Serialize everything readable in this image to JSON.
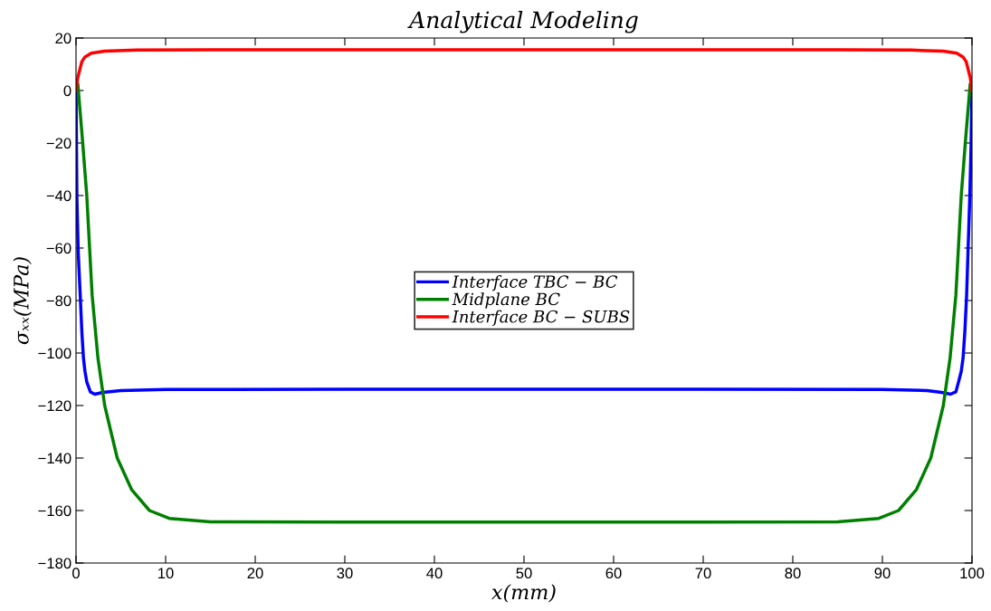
{
  "chart_data": {
    "type": "line",
    "title": "Analytical Modeling",
    "xlabel": "x(mm)",
    "ylabel": "σₓₓ(MPa)",
    "xlim": [
      0,
      100
    ],
    "ylim": [
      -180,
      20
    ],
    "xticks": [
      0,
      10,
      20,
      30,
      40,
      50,
      60,
      70,
      80,
      90,
      100
    ],
    "yticks": [
      -180,
      -160,
      -140,
      -120,
      -100,
      -80,
      -60,
      -40,
      -20,
      0,
      20
    ],
    "grid": false,
    "legend": "center",
    "line_style": "solid",
    "marker": "none",
    "series": [
      {
        "name": "Interface TBC − BC",
        "color": "#0000ff",
        "x": [
          0,
          0.1,
          0.25,
          0.47,
          0.65,
          0.83,
          1.0,
          1.2,
          1.6,
          2.1,
          3,
          5,
          10,
          30,
          50,
          70,
          90,
          95,
          96.6,
          97.6,
          98.2,
          98.5,
          98.8,
          99.0,
          99.2,
          99.4,
          99.55,
          99.75,
          99.9,
          100
        ],
        "values": [
          0,
          -41,
          -62,
          -78,
          -92,
          -102,
          -107,
          -111,
          -114.8,
          -115.7,
          -115,
          -114.3,
          -113.9,
          -113.8,
          -113.8,
          -113.8,
          -113.9,
          -114.3,
          -115,
          -115.7,
          -114.8,
          -111,
          -107,
          -102,
          -92,
          -78,
          -62,
          -41,
          -20,
          0
        ]
      },
      {
        "name": "Midplane BC",
        "color": "#008000",
        "x": [
          0,
          0.2,
          0.7,
          1.2,
          1.8,
          2.45,
          3.2,
          4.6,
          6.2,
          8.2,
          10.4,
          15,
          30,
          50,
          70,
          85,
          89.6,
          91.8,
          93.8,
          95.4,
          96.8,
          97.55,
          98.2,
          98.8,
          99.3,
          99.8,
          100
        ],
        "values": [
          0,
          2.5,
          -18,
          -40,
          -78,
          -102,
          -120,
          -140,
          -152,
          -160,
          -163,
          -164.3,
          -164.4,
          -164.4,
          -164.4,
          -164.3,
          -163,
          -160,
          -152,
          -140,
          -120,
          -102,
          -78,
          -40,
          -18,
          2.5,
          0
        ]
      },
      {
        "name": "Interface BC − SUBS",
        "color": "#ff0000",
        "x": [
          0,
          0.2,
          0.65,
          1.0,
          1.7,
          3.2,
          6.8,
          15,
          50,
          85,
          93.2,
          96.8,
          98.3,
          99.0,
          99.35,
          99.8,
          100
        ],
        "values": [
          0,
          5,
          11,
          12.8,
          14.2,
          15,
          15.4,
          15.5,
          15.5,
          15.5,
          15.4,
          15,
          14.2,
          12.8,
          11,
          5,
          0
        ]
      }
    ]
  }
}
